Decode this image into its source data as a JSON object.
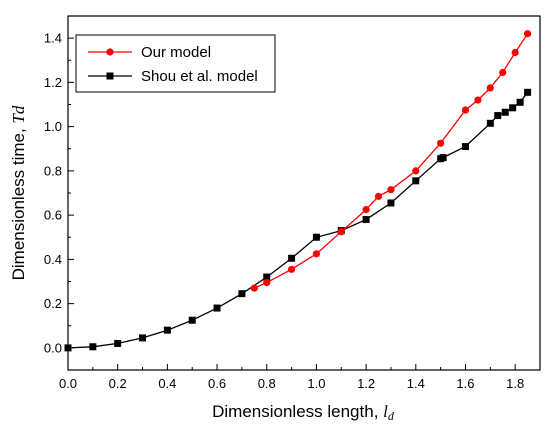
{
  "chart_data": {
    "type": "line",
    "xlabel": "Dimensionless length, ",
    "xlabel_symbol": "l",
    "xlabel_subscript": "d",
    "ylabel": "Dimensionless time, ",
    "ylabel_symbol": "Td",
    "xlim": [
      0.0,
      1.9
    ],
    "ylim": [
      -0.1,
      1.5
    ],
    "x_ticks": [
      "0.0",
      "0.2",
      "0.4",
      "0.6",
      "0.8",
      "1.0",
      "1.2",
      "1.4",
      "1.6",
      "1.8"
    ],
    "x_tick_values": [
      0.0,
      0.2,
      0.4,
      0.6,
      0.8,
      1.0,
      1.2,
      1.4,
      1.6,
      1.8
    ],
    "y_ticks": [
      "0.0",
      "0.2",
      "0.4",
      "0.6",
      "0.8",
      "1.0",
      "1.2",
      "1.4"
    ],
    "y_tick_values": [
      0.0,
      0.2,
      0.4,
      0.6,
      0.8,
      1.0,
      1.2,
      1.4
    ],
    "grid": false,
    "legend": "top-left",
    "series": [
      {
        "name": "Shou et al. model",
        "color": "#000000",
        "marker": "square",
        "x": [
          0.0,
          0.1,
          0.2,
          0.3,
          0.4,
          0.5,
          0.6,
          0.7,
          0.8,
          0.9,
          1.0,
          1.1,
          1.2,
          1.3,
          1.4,
          1.5,
          1.51,
          1.6,
          1.7,
          1.73,
          1.76,
          1.79,
          1.82,
          1.85
        ],
        "y": [
          0.0,
          0.005,
          0.02,
          0.045,
          0.08,
          0.125,
          0.18,
          0.245,
          0.32,
          0.405,
          0.5,
          0.53,
          0.58,
          0.655,
          0.755,
          0.855,
          0.86,
          0.91,
          1.015,
          1.05,
          1.065,
          1.085,
          1.11,
          1.155
        ]
      },
      {
        "name": "Our model",
        "color": "#ff0000",
        "marker": "circle",
        "x": [
          0.75,
          0.8,
          0.9,
          1.0,
          1.1,
          1.2,
          1.25,
          1.3,
          1.4,
          1.5,
          1.6,
          1.65,
          1.7,
          1.75,
          1.8,
          1.85
        ],
        "y": [
          0.27,
          0.295,
          0.355,
          0.425,
          0.525,
          0.625,
          0.685,
          0.715,
          0.8,
          0.925,
          1.075,
          1.12,
          1.175,
          1.245,
          1.335,
          1.42
        ]
      }
    ]
  }
}
